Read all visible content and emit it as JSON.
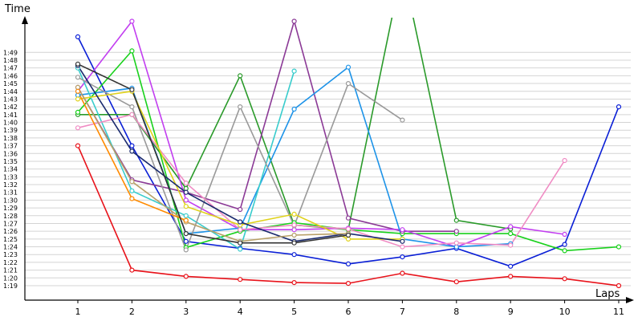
{
  "chart_data": {
    "type": "line",
    "xlabel": "Laps",
    "ylabel": "Time",
    "x": [
      1,
      2,
      3,
      4,
      5,
      6,
      7,
      8,
      9,
      10,
      11
    ],
    "x_tick_labels": [
      "1",
      "2",
      "3",
      "4",
      "5",
      "6",
      "7",
      "8",
      "9",
      "10",
      "11"
    ],
    "y_tick_labels": [
      "1:19",
      "1:20",
      "1:21",
      "1:22",
      "1:23",
      "1:24",
      "1:25",
      "1:26",
      "1:27",
      "1:28",
      "1:29",
      "1:30",
      "1:31",
      "1:32",
      "1:33",
      "1:34",
      "1:35",
      "1:36",
      "1:37",
      "1:38",
      "1:39",
      "1:40",
      "1:41",
      "1:42",
      "1:43",
      "1:44",
      "1:45",
      "1:46",
      "1:47",
      "1:48",
      "1:49"
    ],
    "y_unit": "seconds",
    "ylim": [
      78,
      113
    ],
    "xlim": [
      0,
      11.3
    ],
    "grid": true,
    "legend": "none",
    "series": [
      {
        "color": "#e8121a",
        "values": [
          97,
          81,
          80.2,
          79.8,
          79.4,
          79.3,
          80.6,
          79.5,
          80.2,
          79.9,
          79
        ]
      },
      {
        "color": "#0a1fd6",
        "values": [
          111,
          97,
          84.7,
          83.8,
          83,
          81.8,
          82.7,
          83.8,
          81.5,
          84.3,
          102
        ]
      },
      {
        "color": "#2a9a2a",
        "values": [
          101,
          101,
          91.5,
          106,
          86.8,
          86.2,
          120,
          87.4,
          86.3,
          null,
          null
        ]
      },
      {
        "color": "#19d11c",
        "values": [
          101.3,
          109.2,
          83.9,
          86,
          87.1,
          86.2,
          85.7,
          85.7,
          85.7,
          83.5,
          84
        ]
      },
      {
        "color": "#8b3a96",
        "values": [
          104.5,
          92.6,
          91,
          88.8,
          113,
          87.7,
          86,
          86,
          null,
          null,
          null
        ]
      },
      {
        "color": "#c23ef0",
        "values": [
          104,
          113,
          90,
          86.2,
          86.2,
          86.4,
          86.2,
          84,
          86.6,
          85.6,
          null
        ]
      },
      {
        "color": "#1d93e8",
        "values": [
          103.5,
          104.4,
          85.7,
          86.4,
          101.7,
          107.1,
          85,
          84,
          84.4,
          null,
          null
        ]
      },
      {
        "color": "#38cccc",
        "values": [
          107,
          91.2,
          88,
          83.7,
          106.6,
          null,
          null,
          null,
          null,
          null,
          null
        ]
      },
      {
        "color": "#999999",
        "values": [
          105.8,
          102,
          83.6,
          102,
          86.7,
          105,
          100.3,
          null,
          null,
          null,
          null
        ]
      },
      {
        "color": "#f08cc4",
        "values": [
          99.3,
          101,
          92.2,
          86.2,
          86.8,
          86.3,
          84,
          84.5,
          84.2,
          95.1,
          null
        ]
      },
      {
        "color": "#e0d21a",
        "values": [
          103,
          104,
          89.2,
          86.8,
          88.2,
          85,
          85,
          null,
          null,
          null,
          null
        ]
      },
      {
        "color": "#1a2a6e",
        "values": [
          107.3,
          96.3,
          91,
          87.2,
          84.7,
          85.7,
          84.7,
          null,
          null,
          null,
          null
        ]
      },
      {
        "color": "#b8a068",
        "values": [
          104.5,
          92.4,
          87.2,
          84.7,
          85.5,
          85.7,
          null,
          null,
          null,
          null,
          null
        ]
      },
      {
        "color": "#ff8a00",
        "values": [
          104,
          90.2,
          87.4,
          null,
          null,
          null,
          null,
          null,
          null,
          null,
          null
        ]
      },
      {
        "color": "#333333",
        "values": [
          107.5,
          104.2,
          85.7,
          84.5,
          84.5,
          85.5,
          null,
          null,
          null,
          null,
          null
        ]
      }
    ]
  }
}
